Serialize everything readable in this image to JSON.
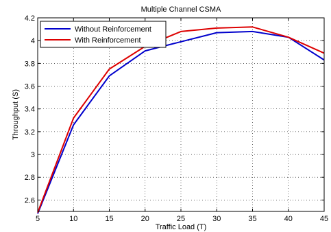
{
  "chart_data": {
    "type": "line",
    "title": "Multiple Channel CSMA",
    "xlabel": "Traffic Load (T)",
    "ylabel": "Throughput (S)",
    "x": [
      5,
      10,
      15,
      20,
      25,
      30,
      35,
      40,
      45
    ],
    "xlim": [
      5,
      45
    ],
    "ylim": [
      2.5,
      4.2
    ],
    "xticks": [
      5,
      10,
      15,
      20,
      25,
      30,
      35,
      40,
      45
    ],
    "yticks": [
      2.6,
      2.8,
      3,
      3.2,
      3.4,
      3.6,
      3.8,
      4,
      4.2
    ],
    "grid": true,
    "legend_position": "top-left",
    "series": [
      {
        "name": "Without Reinforcement",
        "color": "#0000cc",
        "values": [
          2.48,
          3.26,
          3.69,
          3.91,
          3.99,
          4.07,
          4.08,
          4.03,
          3.83
        ]
      },
      {
        "name": "With Reinforcement",
        "color": "#dd0000",
        "values": [
          2.49,
          3.32,
          3.75,
          3.95,
          4.08,
          4.11,
          4.12,
          4.03,
          3.89
        ]
      }
    ]
  }
}
